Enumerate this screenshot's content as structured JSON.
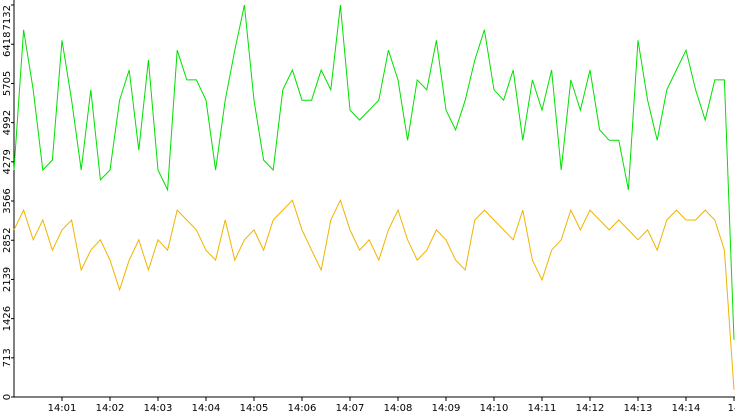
{
  "chart_data": {
    "type": "line",
    "x": [
      0,
      0.2,
      0.4,
      0.6,
      0.8,
      1,
      1.2,
      1.4,
      1.6,
      1.8,
      2,
      2.2,
      2.4,
      2.6,
      2.8,
      3,
      3.2,
      3.4,
      3.6,
      3.8,
      4,
      4.2,
      4.4,
      4.6,
      4.8,
      5,
      5.2,
      5.4,
      5.6,
      5.8,
      6,
      6.2,
      6.4,
      6.6,
      6.8,
      7,
      7.2,
      7.4,
      7.6,
      7.8,
      8,
      8.2,
      8.4,
      8.6,
      8.8,
      9,
      9.2,
      9.4,
      9.6,
      9.8,
      10,
      10.2,
      10.4,
      10.6,
      10.8,
      11,
      11.2,
      11.4,
      11.6,
      11.8,
      12,
      12.2,
      12.4,
      12.6,
      12.8,
      13,
      13.2,
      13.4,
      13.6,
      13.8,
      14,
      14.2,
      14.4,
      14.6,
      14.8,
      15
    ],
    "series": [
      {
        "color": "#00e000",
        "values": [
          4130,
          6680,
          5590,
          4130,
          4310,
          6490,
          5400,
          4130,
          5590,
          3950,
          4130,
          5400,
          5950,
          4490,
          6130,
          4130,
          3770,
          6310,
          5770,
          5770,
          5400,
          4130,
          5400,
          6310,
          7130,
          5400,
          4310,
          4130,
          5590,
          5950,
          5400,
          5400,
          5950,
          5590,
          7130,
          5220,
          5040,
          5220,
          5400,
          6310,
          5770,
          4670,
          5770,
          5590,
          6490,
          5220,
          4860,
          5400,
          6130,
          6680,
          5590,
          5400,
          5950,
          4670,
          5770,
          5220,
          5950,
          4130,
          5770,
          5220,
          5950,
          4860,
          4670,
          4670,
          3770,
          6490,
          5400,
          4670,
          5590,
          5950,
          6310,
          5590,
          5040,
          5770,
          5770,
          1040
        ]
      },
      {
        "color": "#f0b400",
        "values": [
          3040,
          3400,
          2860,
          3220,
          2670,
          3040,
          3220,
          2310,
          2670,
          2860,
          2490,
          1950,
          2490,
          2860,
          2310,
          2860,
          2670,
          3400,
          3220,
          3040,
          2670,
          2490,
          3220,
          2490,
          2860,
          3040,
          2670,
          3220,
          3400,
          3580,
          3040,
          2670,
          2310,
          3220,
          3580,
          3040,
          2670,
          2860,
          2490,
          3040,
          3400,
          2860,
          2490,
          2670,
          3040,
          2860,
          2490,
          2310,
          3220,
          3400,
          3220,
          3040,
          2860,
          3400,
          2490,
          2130,
          2670,
          2860,
          3400,
          3040,
          3400,
          3220,
          3040,
          3220,
          3040,
          2860,
          3040,
          2670,
          3220,
          3400,
          3220,
          3220,
          3400,
          3220,
          2670,
          130
        ]
      }
    ],
    "xlim": [
      0,
      15
    ],
    "xticks": [
      {
        "value": 1,
        "label": "14:01"
      },
      {
        "value": 2,
        "label": "14:02"
      },
      {
        "value": 3,
        "label": "14:03"
      },
      {
        "value": 4,
        "label": "14:04"
      },
      {
        "value": 5,
        "label": "14:05"
      },
      {
        "value": 6,
        "label": "14:06"
      },
      {
        "value": 7,
        "label": "14:07"
      },
      {
        "value": 8,
        "label": "14:08"
      },
      {
        "value": 9,
        "label": "14:09"
      },
      {
        "value": 10,
        "label": "14:10"
      },
      {
        "value": 11,
        "label": "14:11"
      },
      {
        "value": 12,
        "label": "14:12"
      },
      {
        "value": 13,
        "label": "14:13"
      },
      {
        "value": 14,
        "label": "14:14"
      },
      {
        "value": 15,
        "label": "14"
      }
    ],
    "ylim": [
      0,
      7132
    ],
    "yticks": [
      0,
      713,
      1426,
      2139,
      2852,
      3566,
      4279,
      4992,
      5705,
      6418,
      7132
    ],
    "grid": false
  }
}
